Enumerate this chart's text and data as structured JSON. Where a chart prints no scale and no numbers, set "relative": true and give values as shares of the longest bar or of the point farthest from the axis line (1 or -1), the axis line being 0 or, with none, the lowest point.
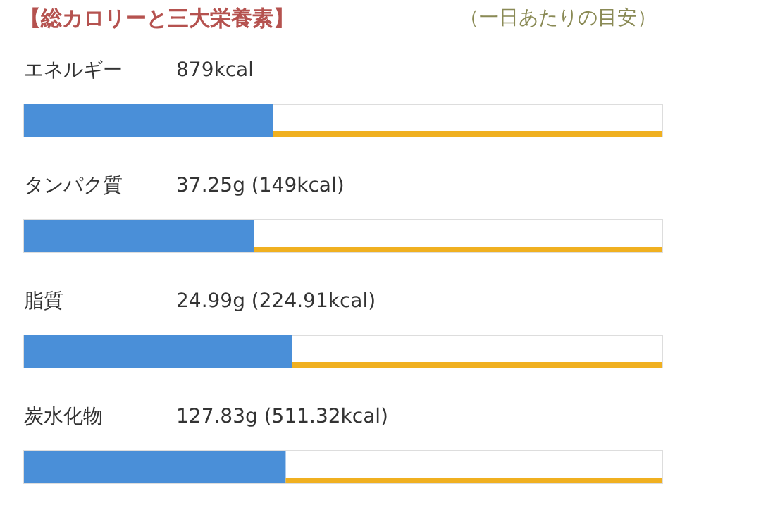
{
  "chart_data": {
    "type": "bar",
    "orientation": "horizontal",
    "stacked": true,
    "relative": true,
    "title": "【総カロリーと三大栄養素】",
    "subtitle": "（一日あたりの目安）",
    "categories": [
      "エネルギー",
      "タンパク質",
      "脂質",
      "炭水化物"
    ],
    "series": [
      {
        "color": "#4a8fd8",
        "values": [
          0.39,
          0.36,
          0.42,
          0.41
        ]
      },
      {
        "color": "#f0b020",
        "values": [
          0.61,
          0.64,
          0.58,
          0.59
        ]
      }
    ],
    "annotations": [
      "879kcal",
      "37.25g (149kcal)",
      "24.99g (224.91kcal)",
      "127.83g (511.32kcal)"
    ]
  }
}
